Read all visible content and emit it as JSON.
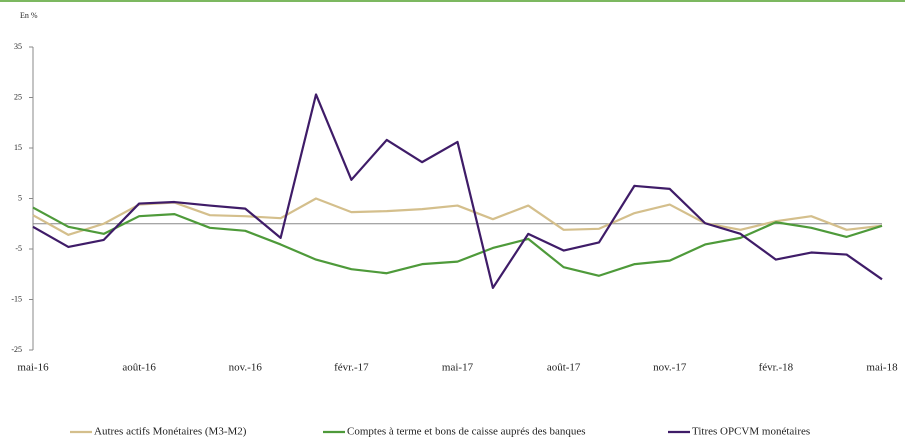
{
  "chart_data": {
    "type": "line",
    "y_label": "En %",
    "categories": [
      "mai-16",
      null,
      null,
      "août-16",
      null,
      null,
      "nov.-16",
      null,
      null,
      "févr.-17",
      null,
      null,
      "mai-17",
      null,
      null,
      "août-17",
      null,
      null,
      "nov.-17",
      null,
      null,
      "févr.-18",
      null,
      null,
      "mai-18"
    ],
    "series": [
      {
        "name": "Autres actifs Monétaires (M3-M2)",
        "color": "#d4bf8c",
        "values": [
          1.7,
          -2.2,
          0,
          3.8,
          4.2,
          1.7,
          1.5,
          1.1,
          5,
          2.3,
          2.5,
          2.9,
          3.6,
          0.9,
          3.6,
          -1.2,
          -1,
          2.1,
          3.8,
          0.1,
          -1.2,
          0.5,
          1.5,
          -1.2,
          -0.4
        ]
      },
      {
        "name": "Comptes à terme et bons de caisse auprés des banques",
        "color": "#4e9a3a",
        "values": [
          3.2,
          -0.6,
          -2,
          1.5,
          1.9,
          -0.8,
          -1.4,
          -4.1,
          -7.1,
          -9,
          -9.8,
          -8,
          -7.5,
          -4.8,
          -3,
          -8.6,
          -10.3,
          -8,
          -7.3,
          -4.1,
          -2.8,
          0.3,
          -0.8,
          -2.6,
          -0.4
        ]
      },
      {
        "name": "Titres OPCVM monétaires",
        "color": "#3f1c68",
        "values": [
          -0.6,
          -4.6,
          -3.2,
          4,
          4.3,
          3.6,
          3,
          -2.8,
          25.6,
          8.7,
          16.6,
          12.2,
          16.2,
          -12.7,
          -2,
          -5.3,
          -3.7,
          7.5,
          6.9,
          0.1,
          -2,
          -7.1,
          -5.7,
          -6.1,
          -11
        ]
      }
    ],
    "ylim": [
      -25,
      35
    ],
    "yticks": [
      -25,
      -15,
      -5,
      5,
      15,
      25,
      35
    ]
  }
}
